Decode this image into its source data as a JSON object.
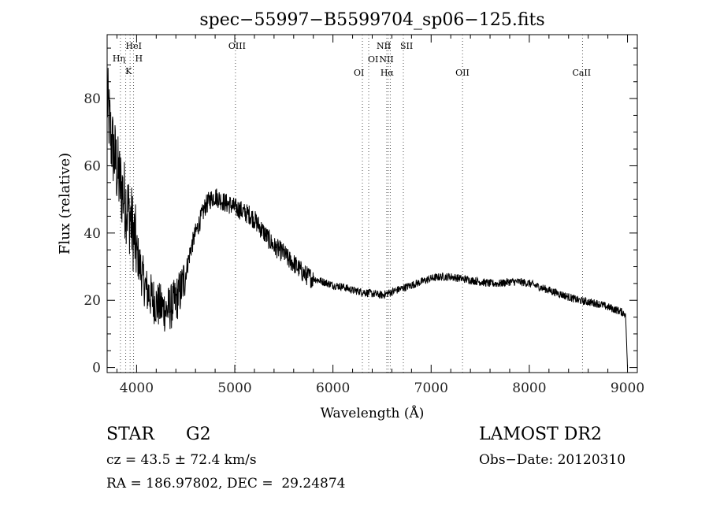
{
  "chart_data": {
    "type": "line",
    "title": "spec−55997−B5599704_sp06−125.fits",
    "xlabel": "Wavelength (Å)",
    "ylabel": "Flux (relative)",
    "xlim": [
      3700,
      9100
    ],
    "ylim": [
      -1.5,
      99
    ],
    "xticks": [
      4000,
      5000,
      6000,
      7000,
      8000,
      9000
    ],
    "yticks": [
      0,
      20,
      40,
      60,
      80
    ],
    "grid": false,
    "series": [
      {
        "x": [
          3700,
          3740,
          3780,
          3820,
          3860,
          3900,
          3940,
          3980,
          4020,
          4060,
          4100,
          4150,
          4200,
          4250,
          4300,
          4350,
          4400,
          4450,
          4500,
          4550,
          4600,
          4650,
          4700,
          4750,
          4800,
          4850,
          4900,
          4950,
          5000,
          5050,
          5100,
          5150,
          5200,
          5250,
          5300,
          5350,
          5400,
          5450,
          5500,
          5550,
          5600,
          5650,
          5700,
          5750,
          5800,
          5850,
          5900,
          5950,
          6000,
          6100,
          6200,
          6300,
          6400,
          6500,
          6550,
          6600,
          6700,
          6800,
          6900,
          7000,
          7100,
          7200,
          7300,
          7400,
          7500,
          7600,
          7700,
          7800,
          7900,
          8000,
          8100,
          8200,
          8300,
          8400,
          8500,
          8600,
          8700,
          8800,
          8900,
          8980,
          9000
        ],
        "y": [
          80,
          68,
          62,
          56,
          52,
          48,
          44,
          38,
          32,
          27,
          23,
          21,
          19,
          18,
          17,
          18,
          20,
          23,
          28,
          35,
          40,
          44,
          48,
          50,
          51,
          50,
          49,
          48.5,
          47.5,
          47,
          46,
          45.5,
          44,
          42,
          40,
          38,
          36,
          35,
          34,
          32,
          31,
          29.5,
          28,
          27,
          26.5,
          26,
          25.5,
          25,
          24.5,
          24,
          23,
          22.5,
          22,
          21.5,
          22,
          22.5,
          23.5,
          24.5,
          25.5,
          26.5,
          27,
          27,
          26.5,
          26,
          25.5,
          25,
          25,
          25.5,
          25.5,
          25,
          24,
          23,
          22,
          21,
          20,
          19.5,
          19,
          18,
          17,
          16,
          0
        ]
      }
    ],
    "lines": [
      {
        "label": "HeI",
        "x": 3889
      },
      {
        "label": "Hη",
        "x": 3835
      },
      {
        "label": "H",
        "x": 3969
      },
      {
        "label": "K",
        "x": 3934
      },
      {
        "label": "OIII",
        "x": 5007
      },
      {
        "label": "OI",
        "x": 6300
      },
      {
        "label": "OI",
        "x": 6364
      },
      {
        "label": "NII",
        "x": 6548
      },
      {
        "label": "Hα",
        "x": 6563
      },
      {
        "label": "NII",
        "x": 6584
      },
      {
        "label": "SII",
        "x": 6717
      },
      {
        "label": "OII",
        "x": 7320
      },
      {
        "label": "CaII",
        "x": 8542
      }
    ]
  },
  "footer": {
    "object_class": "STAR",
    "subclass": "G2",
    "survey": "LAMOST DR2",
    "cz": "cz = 43.5 ± 72.4 km/s",
    "obs_date": "Obs−Date: 20120310",
    "coords": "RA = 186.97802, DEC =  29.24874"
  }
}
